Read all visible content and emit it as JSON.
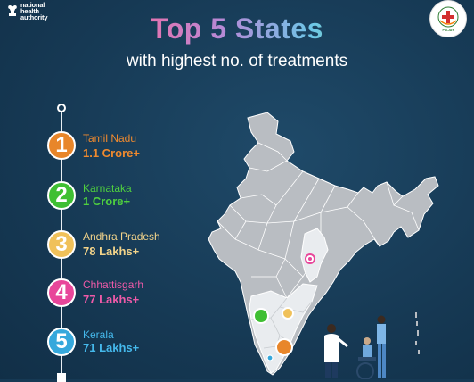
{
  "header": {
    "logo_lines": [
      "national",
      "health",
      "authority"
    ],
    "badge_text": "PM-JAY"
  },
  "title": "Top 5 States",
  "subtitle": "with highest no. of treatments",
  "states": [
    {
      "rank": "1",
      "name": "Tamil Nadu",
      "value": "1.1 Crore+",
      "color": "#e8862a"
    },
    {
      "rank": "2",
      "name": "Karnataka",
      "value": "1 Crore+",
      "color": "#3fbf33"
    },
    {
      "rank": "3",
      "name": "Andhra Pradesh",
      "value": "78 Lakhs+",
      "color": "#f0c15a"
    },
    {
      "rank": "4",
      "name": "Chhattisgarh",
      "value": "77 Lakhs+",
      "color": "#e8469a"
    },
    {
      "rank": "5",
      "name": "Kerala",
      "value": "71 Lakhs+",
      "color": "#35a8dc"
    }
  ],
  "colors": {
    "background": "#163954",
    "map_fill": "#b9bdc2",
    "map_highlight": "#e9ecef"
  }
}
